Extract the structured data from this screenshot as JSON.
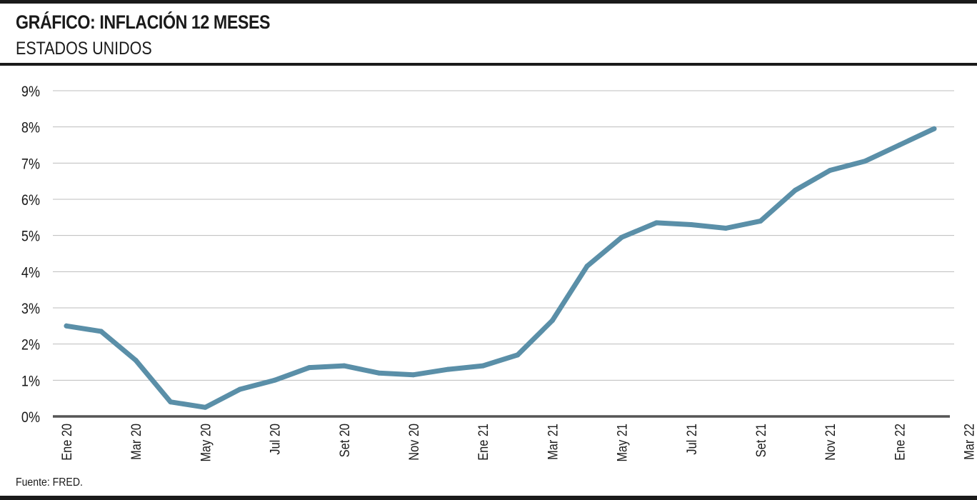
{
  "header": {
    "title": "GRÁFICO: INFLACIÓN 12 MESES",
    "subtitle": "ESTADOS UNIDOS"
  },
  "footer": {
    "source": "Fuente: FRED."
  },
  "colors": {
    "line": "#5a8fa8",
    "grid": "#bdbdbd",
    "baseline": "#555555",
    "rules": "#1a1a1a"
  },
  "chart_data": {
    "type": "line",
    "title": "GRÁFICO: INFLACIÓN 12 MESES",
    "subtitle": "ESTADOS UNIDOS",
    "xlabel": "",
    "ylabel": "",
    "ylim": [
      0,
      9
    ],
    "yticks": [
      0,
      1,
      2,
      3,
      4,
      5,
      6,
      7,
      8,
      9
    ],
    "ytick_labels": [
      "0%",
      "1%",
      "2%",
      "3%",
      "4%",
      "5%",
      "6%",
      "7%",
      "8%",
      "9%"
    ],
    "xtick_labels": [
      "Ene 20",
      "Mar 20",
      "May 20",
      "Jul 20",
      "Set 20",
      "Nov 20",
      "Ene 21",
      "Mar 21",
      "May 21",
      "Jul 21",
      "Set 21",
      "Nov 21",
      "Ene 22",
      "Mar 22"
    ],
    "grid": true,
    "legend": "none",
    "x": [
      "Ene 20",
      "Feb 20",
      "Mar 20",
      "Abr 20",
      "May 20",
      "Jun 20",
      "Jul 20",
      "Ago 20",
      "Set 20",
      "Oct 20",
      "Nov 20",
      "Dic 20",
      "Ene 21",
      "Feb 21",
      "Mar 21",
      "Abr 21",
      "May 21",
      "Jun 21",
      "Jul 21",
      "Ago 21",
      "Set 21",
      "Oct 21",
      "Nov 21",
      "Dic 21",
      "Ene 22",
      "Feb 22"
    ],
    "series": [
      {
        "values": [
          2.5,
          2.35,
          1.55,
          0.4,
          0.25,
          0.75,
          1.0,
          1.35,
          1.4,
          1.2,
          1.15,
          1.3,
          1.4,
          1.7,
          2.65,
          4.15,
          4.95,
          5.35,
          5.3,
          5.2,
          5.4,
          6.25,
          6.8,
          7.05,
          7.5,
          7.95
        ]
      }
    ]
  }
}
